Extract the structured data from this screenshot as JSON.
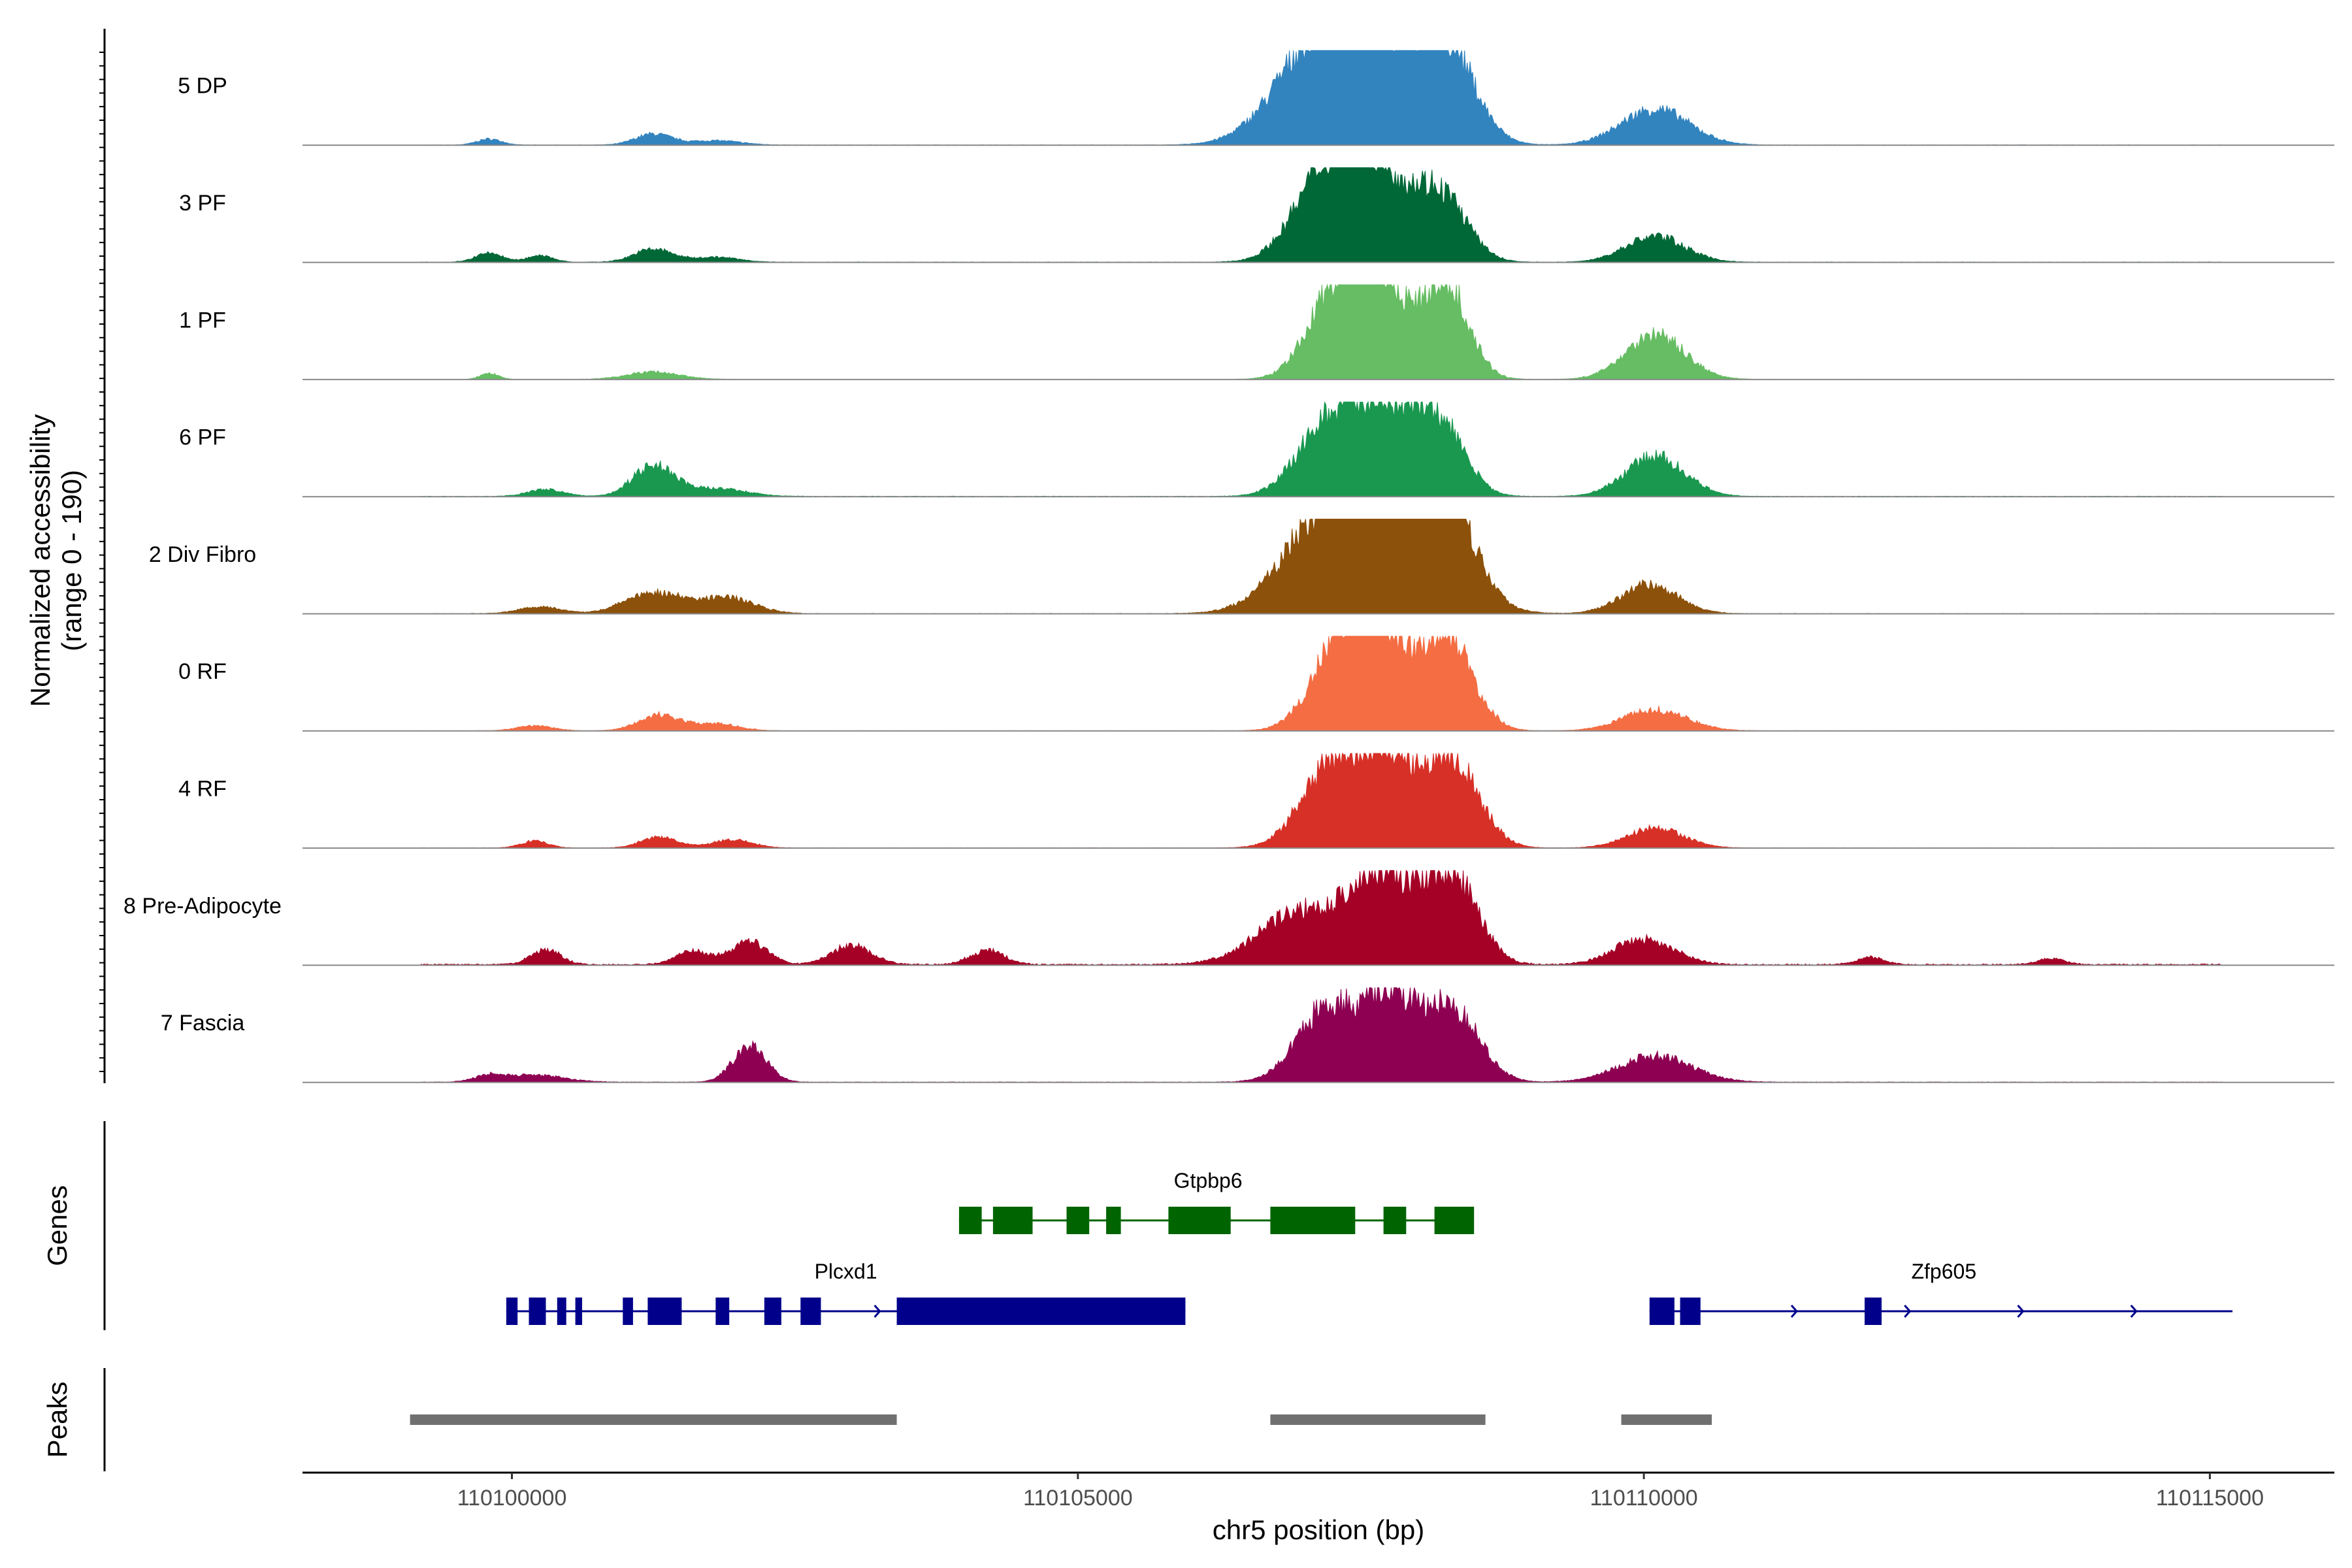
{
  "chart_data": {
    "type": "area",
    "title": "",
    "xlabel": "chr5 position (bp)",
    "ylabel": "Normalized accessibility\n(range 0 - 190)",
    "ylabel_lines": [
      "Normalized accessibility",
      "(range 0 - 190)"
    ],
    "xlim": [
      110098150,
      110116100
    ],
    "ylim": [
      0,
      190
    ],
    "x_ticks": [
      110100000,
      110105000,
      110110000,
      110115000
    ],
    "x_tick_labels": [
      "110100000",
      "110105000",
      "110110000",
      "110115000"
    ],
    "coverage_region": [
      110099200,
      110115100
    ],
    "tracks": [
      {
        "name": "5 DP",
        "color": "#3284BF",
        "noise": 0.25,
        "peaks": [
          [
            110099800,
            110,
            12
          ],
          [
            110101250,
            160,
            22
          ],
          [
            110101800,
            220,
            9
          ],
          [
            110107100,
            380,
            150
          ],
          [
            110107600,
            420,
            190
          ],
          [
            110108250,
            250,
            170
          ],
          [
            110110100,
            300,
            72
          ]
        ]
      },
      {
        "name": "3 PF",
        "color": "#006837",
        "noise": 0.3,
        "peaks": [
          [
            110099800,
            120,
            18
          ],
          [
            110100250,
            110,
            14
          ],
          [
            110101250,
            170,
            26
          ],
          [
            110101800,
            200,
            10
          ],
          [
            110107200,
            280,
            178
          ],
          [
            110107650,
            260,
            160
          ],
          [
            110108200,
            230,
            135
          ],
          [
            110110100,
            260,
            52
          ]
        ]
      },
      {
        "name": "1 PF",
        "color": "#66BD63",
        "noise": 0.2,
        "peaks": [
          [
            110099800,
            80,
            12
          ],
          [
            110101250,
            230,
            15
          ],
          [
            110107300,
            250,
            185
          ],
          [
            110107700,
            220,
            170
          ],
          [
            110108250,
            200,
            190
          ],
          [
            110110100,
            260,
            90
          ]
        ]
      },
      {
        "name": "6 PF",
        "color": "#1A9850",
        "noise": 0.35,
        "peaks": [
          [
            110100300,
            160,
            14
          ],
          [
            110101250,
            180,
            62
          ],
          [
            110101800,
            260,
            16
          ],
          [
            110107250,
            280,
            158
          ],
          [
            110107750,
            250,
            148
          ],
          [
            110108200,
            220,
            135
          ],
          [
            110110100,
            260,
            80
          ]
        ]
      },
      {
        "name": "2 Div Fibro",
        "color": "#8C510A",
        "noise": 0.3,
        "peaks": [
          [
            110100250,
            180,
            14
          ],
          [
            110101250,
            250,
            42
          ],
          [
            110101900,
            240,
            32
          ],
          [
            110107200,
            380,
            182
          ],
          [
            110107850,
            420,
            158
          ],
          [
            110108250,
            240,
            168
          ],
          [
            110110050,
            250,
            58
          ]
        ]
      },
      {
        "name": "0 RF",
        "color": "#F46D43",
        "noise": 0.2,
        "peaks": [
          [
            110100200,
            160,
            10
          ],
          [
            110101300,
            180,
            32
          ],
          [
            110101800,
            200,
            14
          ],
          [
            110107350,
            260,
            182
          ],
          [
            110107700,
            230,
            150
          ],
          [
            110108250,
            230,
            190
          ],
          [
            110110100,
            280,
            42
          ]
        ]
      },
      {
        "name": "4 RF",
        "color": "#D73027",
        "noise": 0.2,
        "peaks": [
          [
            110100200,
            120,
            14
          ],
          [
            110101300,
            160,
            22
          ],
          [
            110101950,
            180,
            16
          ],
          [
            110107250,
            270,
            162
          ],
          [
            110107750,
            230,
            155
          ],
          [
            110108300,
            240,
            175
          ],
          [
            110110100,
            250,
            40
          ]
        ]
      },
      {
        "name": "8 Pre-Adipocyte",
        "color": "#A50026",
        "noise": 0.9,
        "peaks": [
          [
            110100300,
            130,
            30
          ],
          [
            110101600,
            150,
            28
          ],
          [
            110102100,
            160,
            45
          ],
          [
            110103000,
            180,
            38
          ],
          [
            110104200,
            150,
            28
          ],
          [
            110107000,
            380,
            110
          ],
          [
            110107700,
            260,
            170
          ],
          [
            110108300,
            230,
            180
          ],
          [
            110110000,
            260,
            52
          ],
          [
            110112000,
            120,
            14
          ],
          [
            110113600,
            120,
            12
          ]
        ]
      },
      {
        "name": "7 Fascia",
        "color": "#8E0152",
        "noise": 0.35,
        "peaks": [
          [
            110099800,
            130,
            12
          ],
          [
            110100200,
            260,
            14
          ],
          [
            110102100,
            150,
            70
          ],
          [
            110107200,
            260,
            148
          ],
          [
            110107750,
            220,
            170
          ],
          [
            110108300,
            240,
            148
          ],
          [
            110110100,
            320,
            52
          ]
        ]
      }
    ],
    "genes": [
      {
        "name": "Plcxd1",
        "strand": "+",
        "color": "#00008B",
        "row": 2,
        "label_x": 110102950,
        "start": 110099950,
        "end": 110105950,
        "exons": [
          [
            110099950,
            110100050
          ],
          [
            110100150,
            110100300
          ],
          [
            110100400,
            110100480
          ],
          [
            110100560,
            110100620
          ],
          [
            110100980,
            110101070
          ],
          [
            110101200,
            110101500
          ],
          [
            110101800,
            110101920
          ],
          [
            110102230,
            110102380
          ],
          [
            110102550,
            110102730
          ],
          [
            110103400,
            110105950
          ]
        ]
      },
      {
        "name": "Gtpbp6",
        "strand": "-",
        "color": "#006400",
        "row": 1,
        "label_x": 110106150,
        "start": 110103950,
        "end": 110108200,
        "exons": [
          [
            110103950,
            110104150
          ],
          [
            110104250,
            110104600
          ],
          [
            110104900,
            110105100
          ],
          [
            110105250,
            110105380
          ],
          [
            110105800,
            110106350
          ],
          [
            110106700,
            110107450
          ],
          [
            110107700,
            110107900
          ],
          [
            110108150,
            110108500
          ]
        ]
      },
      {
        "name": "Zfp605",
        "strand": "+",
        "color": "#00008B",
        "row": 2,
        "label_x": 110112650,
        "start": 110110050,
        "end": 110115200,
        "exons": [
          [
            110110050,
            110110270
          ],
          [
            110110320,
            110110500
          ],
          [
            110111950,
            110112100
          ]
        ]
      }
    ],
    "peaks_track": [
      [
        110099100,
        110103400
      ],
      [
        110106700,
        110108600
      ],
      [
        110109800,
        110110600
      ]
    ],
    "panel_titles": {
      "genes": "Genes",
      "peaks": "Peaks"
    }
  }
}
